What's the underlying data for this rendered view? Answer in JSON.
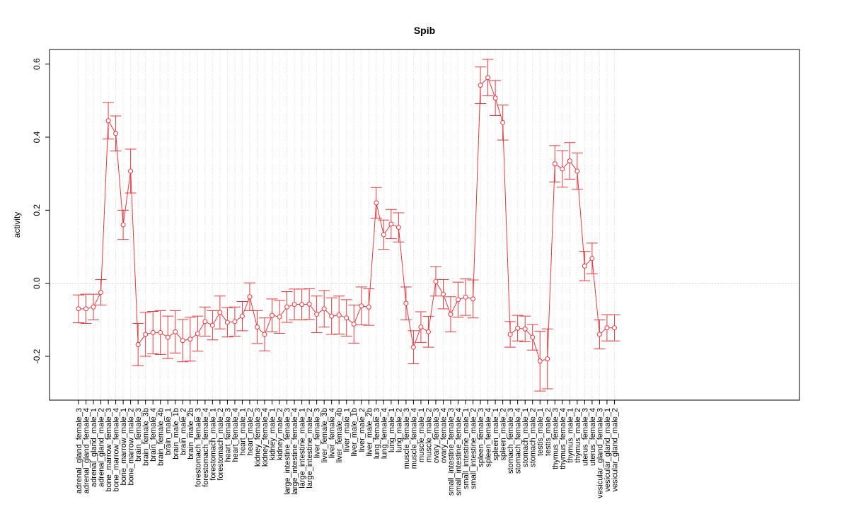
{
  "chart_data": {
    "type": "line",
    "title": "Spib",
    "xlabel": "",
    "ylabel": "activity",
    "ylim": [
      -0.32,
      0.64
    ],
    "yticks": [
      -0.2,
      0.0,
      0.2,
      0.4,
      0.6
    ],
    "ytick_labels": [
      "-0.2",
      "0.0",
      "0.2",
      "0.4",
      "0.6"
    ],
    "grid": true,
    "categories": [
      "adrenal_gland_female_3",
      "adrenal_gland_female_4",
      "adrenal_gland_male_1",
      "adrenal_gland_male_2",
      "bone_marrow_female_3",
      "bone_marrow_female_4",
      "bone_marrow_male_1",
      "bone_marrow_male_2",
      "brain_female_3",
      "brain_female_3b",
      "brain_female_4",
      "brain_female_4b",
      "brain_male_1",
      "brain_male_1b",
      "brain_male_2",
      "brain_male_2b",
      "forestomach_female_3",
      "forestomach_female_4",
      "forestomach_male_1",
      "forestomach_male_2",
      "heart_female_3",
      "heart_female_4",
      "heart_male_1",
      "heart_male_2",
      "kidney_female_3",
      "kidney_female_4",
      "kidney_male_1",
      "kidney_male_2",
      "large_intestine_female_3",
      "large_intestine_female_4",
      "large_intestine_male_1",
      "large_intestine_male_2",
      "liver_female_3",
      "liver_female_3b",
      "liver_female_4",
      "liver_female_4b",
      "liver_male_1",
      "liver_male_1b",
      "liver_male_2",
      "liver_male_2b",
      "lung_female_3",
      "lung_female_4",
      "lung_male_1",
      "lung_male_2",
      "muscle_female_3",
      "muscle_female_4",
      "muscle_male_1",
      "muscle_male_2",
      "ovary_female_3",
      "ovary_female_4",
      "small_intestine_female_3",
      "small_intestine_female_4",
      "small_intestine_male_1",
      "small_intestine_male_2",
      "spleen_female_3",
      "spleen_female_4",
      "spleen_male_1",
      "spleen_male_2",
      "stomach_female_3",
      "stomach_female_4",
      "stomach_male_1",
      "stomach_male_2",
      "testis_male_1",
      "testis_male_2",
      "thymus_female_3",
      "thymus_female_4",
      "thymus_male_1",
      "thymus_male_2",
      "uterus_female_3",
      "uterus_female_4",
      "vesicular_gland_female_3",
      "vesicular_gland_male_1",
      "vesicular_gland_male_2"
    ],
    "series": [
      {
        "color": "#e8383d",
        "values": [
          -0.07,
          -0.07,
          -0.065,
          -0.025,
          0.445,
          0.41,
          0.16,
          0.307,
          -0.168,
          -0.14,
          -0.135,
          -0.135,
          -0.148,
          -0.133,
          -0.157,
          -0.153,
          -0.138,
          -0.105,
          -0.115,
          -0.08,
          -0.107,
          -0.105,
          -0.09,
          -0.037,
          -0.12,
          -0.14,
          -0.088,
          -0.092,
          -0.065,
          -0.058,
          -0.058,
          -0.057,
          -0.085,
          -0.07,
          -0.09,
          -0.087,
          -0.095,
          -0.112,
          -0.062,
          -0.065,
          0.22,
          0.133,
          0.162,
          0.153,
          -0.055,
          -0.175,
          -0.12,
          -0.133,
          0.005,
          -0.03,
          -0.085,
          -0.045,
          -0.038,
          -0.043,
          0.542,
          0.563,
          0.507,
          0.44,
          -0.14,
          -0.123,
          -0.125,
          -0.148,
          -0.213,
          -0.207,
          0.327,
          0.313,
          0.335,
          0.307,
          0.047,
          0.068,
          -0.14,
          -0.122,
          -0.122
        ],
        "err": [
          0.038,
          0.04,
          0.035,
          0.035,
          0.05,
          0.048,
          0.04,
          0.06,
          0.058,
          0.06,
          0.058,
          0.06,
          0.058,
          0.058,
          0.058,
          0.06,
          0.048,
          0.04,
          0.04,
          0.045,
          0.04,
          0.04,
          0.04,
          0.038,
          0.045,
          0.045,
          0.045,
          0.045,
          0.042,
          0.042,
          0.042,
          0.042,
          0.05,
          0.05,
          0.05,
          0.052,
          0.05,
          0.052,
          0.052,
          0.05,
          0.042,
          0.04,
          0.04,
          0.04,
          0.045,
          0.045,
          0.042,
          0.042,
          0.04,
          0.04,
          0.048,
          0.048,
          0.05,
          0.052,
          0.05,
          0.05,
          0.048,
          0.048,
          0.035,
          0.035,
          0.035,
          0.035,
          0.082,
          0.082,
          0.05,
          0.05,
          0.05,
          0.05,
          0.04,
          0.042,
          0.04,
          0.036,
          0.036
        ]
      }
    ]
  }
}
